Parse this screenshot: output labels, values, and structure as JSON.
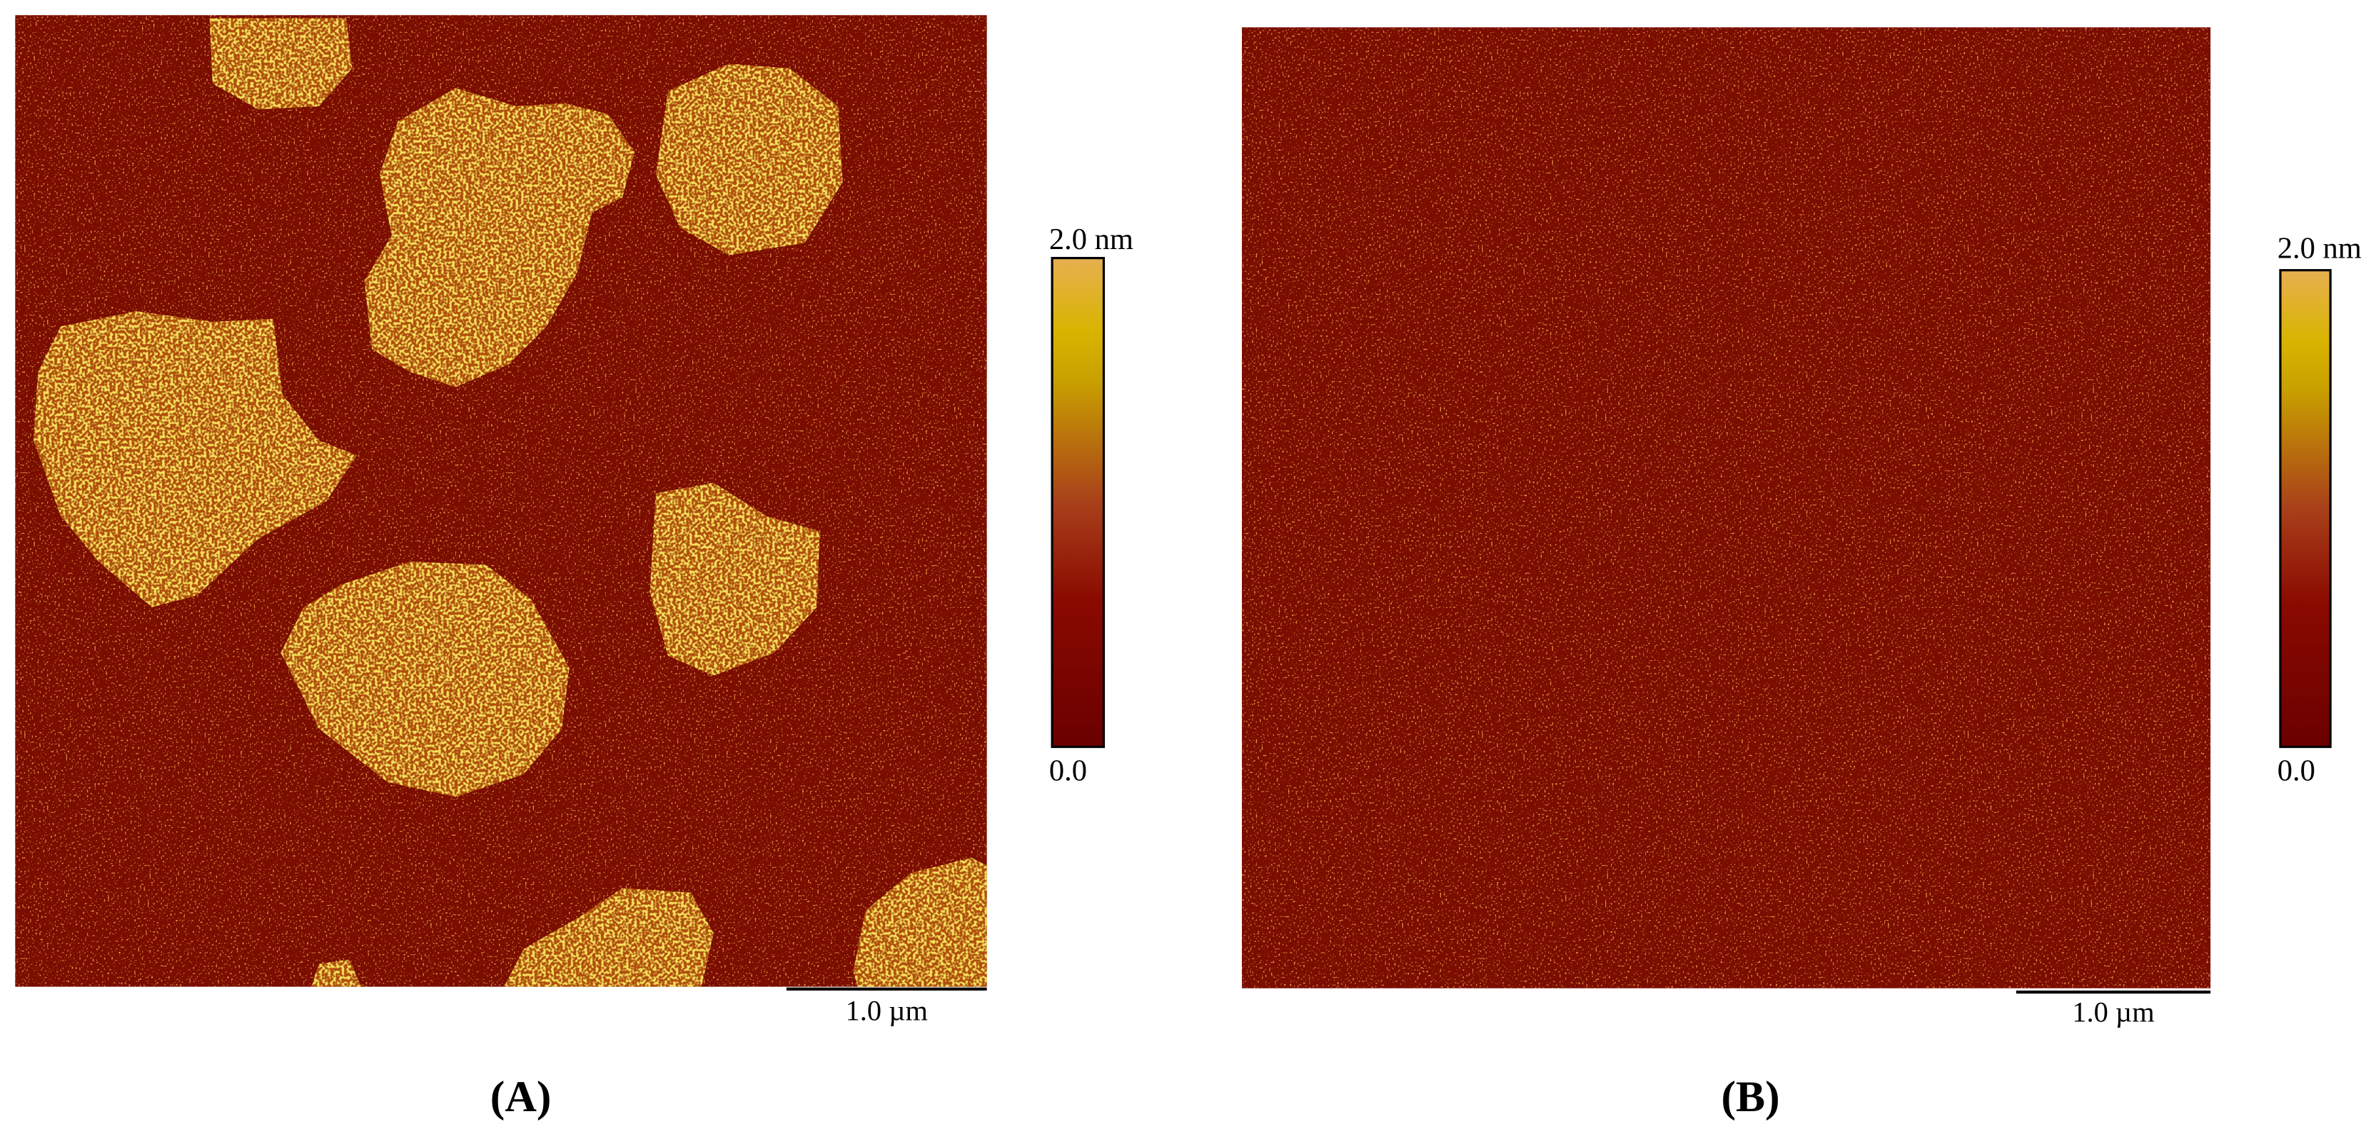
{
  "panels": [
    {
      "label": "(A)",
      "colorbar": {
        "max": "2.0 nm",
        "min": "0.0"
      },
      "scale_bar": "1.0 µm"
    },
    {
      "label": "(B)",
      "colorbar": {
        "max": "2.0 nm",
        "min": "0.0"
      },
      "scale_bar": "1.0 µm"
    }
  ]
}
